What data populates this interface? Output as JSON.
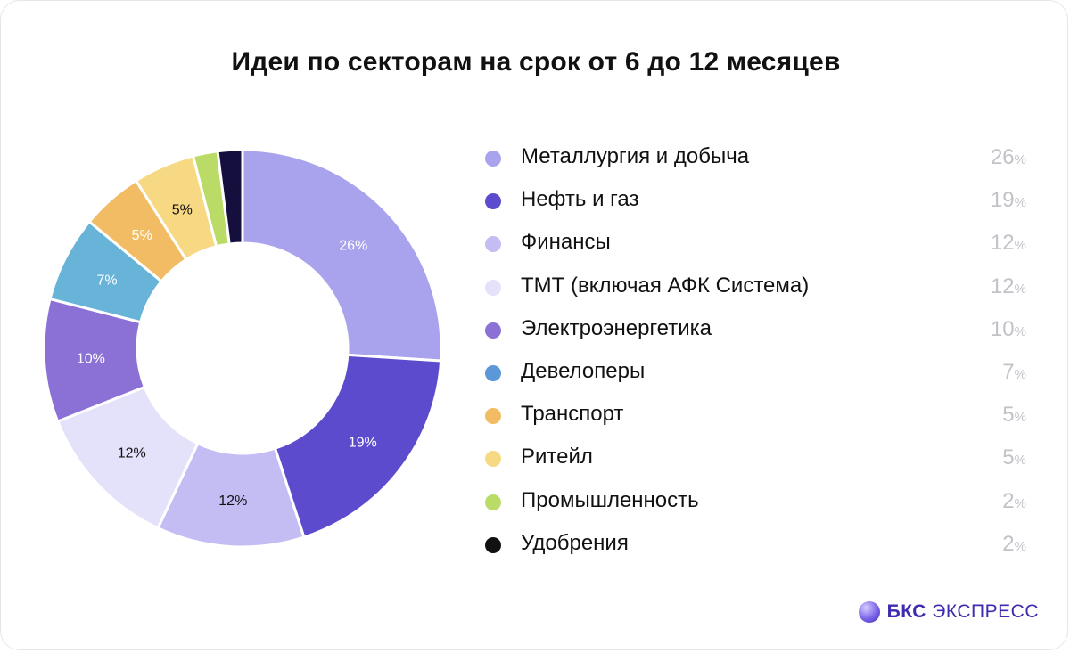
{
  "chart_data": {
    "type": "pie",
    "title": "Идеи по секторам на срок от 6 до 12 месяцев",
    "unit": "%",
    "legend_position": "right",
    "categories": [
      "Металлургия и добыча",
      "Нефть и газ",
      "Финансы",
      "ТМТ (включая АФК Система)",
      "Электроэнергетика",
      "Девелоперы",
      "Транспорт",
      "Ритейл",
      "Промышленность",
      "Удобрения"
    ],
    "values": [
      26,
      19,
      12,
      12,
      10,
      7,
      5,
      5,
      2,
      2
    ],
    "slice_colors": [
      "#a9a3ee",
      "#5c4bcd",
      "#c4bdf4",
      "#e4e1fa",
      "#8b71d6",
      "#68b4d9",
      "#f2bc64",
      "#f8d983",
      "#badb65",
      "#150f3d"
    ],
    "legend_colors": [
      "#a9a3ee",
      "#5c4bcd",
      "#c4bdf4",
      "#e4e1fa",
      "#8b71d6",
      "#5c97d8",
      "#f2bc64",
      "#f8d983",
      "#badb65",
      "#111111"
    ],
    "label_colors": [
      "#ffffff",
      "#ffffff",
      "#111111",
      "#111111",
      "#ffffff",
      "#ffffff",
      "#ffffff",
      "#111111",
      null,
      null
    ]
  },
  "brand": {
    "logo_bold": "БКС",
    "logo_rest": "ЭКСПРЕСС",
    "color": "#3d2cb0"
  }
}
